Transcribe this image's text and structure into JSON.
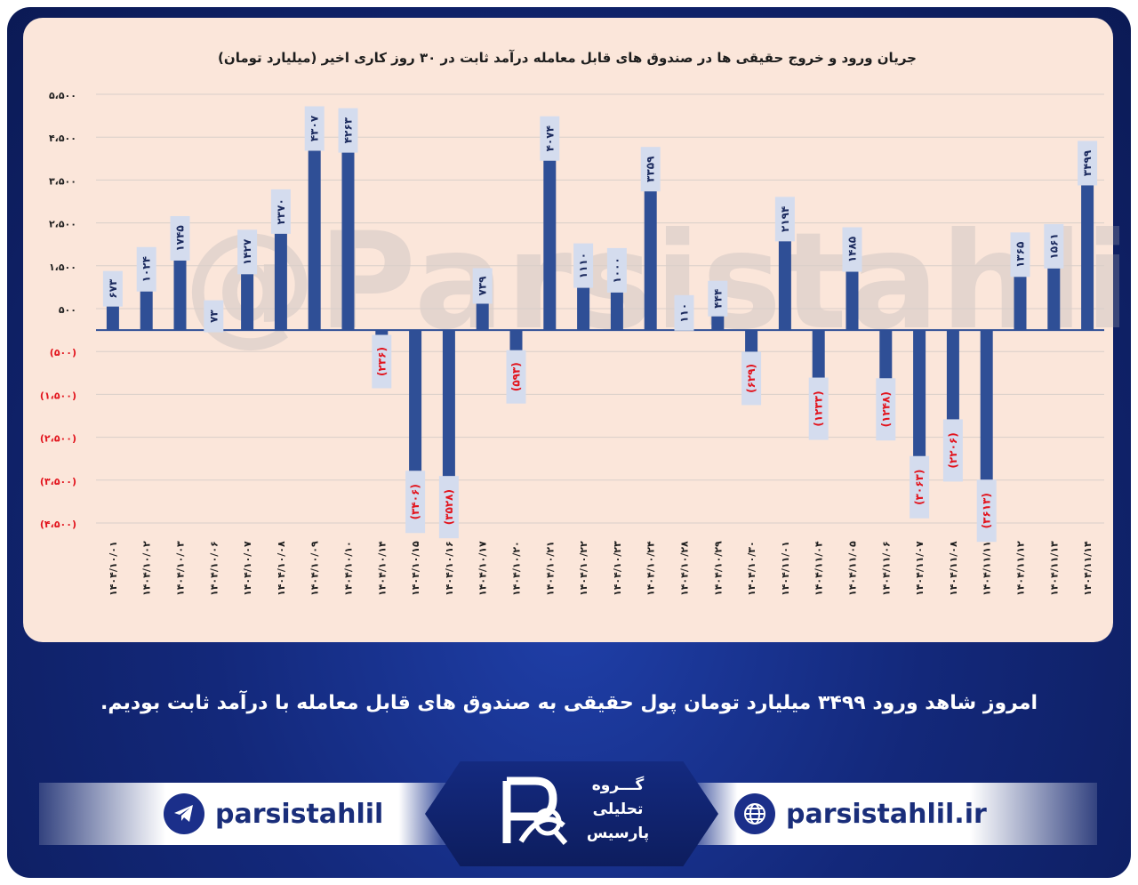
{
  "chart_data": {
    "type": "bar",
    "title": "جریان ورود و خروج حقیقی ها در صندوق های قابل معامله درآمد ثابت در ۳۰ روز کاری اخیر (میلیارد تومان)",
    "y_ticks": [
      "۵،۵۰۰",
      "۴،۵۰۰",
      "۳،۵۰۰",
      "۲،۵۰۰",
      "۱،۵۰۰",
      "۵۰۰",
      "(۵۰۰)",
      "(۱،۵۰۰)",
      "(۲،۵۰۰)",
      "(۳،۵۰۰)",
      "(۴،۵۰۰)"
    ],
    "y_tick_values": [
      5500,
      4500,
      3500,
      2500,
      1500,
      500,
      -500,
      -1500,
      -2500,
      -3500,
      -4500
    ],
    "ylim": [
      -4500,
      5500
    ],
    "grid": true,
    "categories": [
      "۱۴۰۴/۱۰/۰۱",
      "۱۴۰۴/۱۰/۰۲",
      "۱۴۰۴/۱۰/۰۳",
      "۱۴۰۴/۱۰/۰۶",
      "۱۴۰۴/۱۰/۰۷",
      "۱۴۰۴/۱۰/۰۸",
      "۱۴۰۴/۱۰/۰۹",
      "۱۴۰۴/۱۰/۱۰",
      "۱۴۰۴/۱۰/۱۴",
      "۱۴۰۴/۱۰/۱۵",
      "۱۴۰۴/۱۰/۱۶",
      "۱۴۰۴/۱۰/۱۷",
      "۱۴۰۴/۱۰/۲۰",
      "۱۴۰۴/۱۰/۲۱",
      "۱۴۰۴/۱۰/۲۲",
      "۱۴۰۴/۱۰/۲۳",
      "۱۴۰۴/۱۰/۲۴",
      "۱۴۰۴/۱۰/۲۸",
      "۱۴۰۴/۱۰/۲۹",
      "۱۴۰۴/۱۰/۳۰",
      "۱۴۰۴/۱۱/۰۱",
      "۱۴۰۴/۱۱/۰۴",
      "۱۴۰۴/۱۱/۰۵",
      "۱۴۰۴/۱۱/۰۶",
      "۱۴۰۴/۱۱/۰۷",
      "۱۴۰۴/۱۱/۰۸",
      "۱۴۰۴/۱۱/۱۱",
      "۱۴۰۴/۱۱/۱۲",
      "۱۴۰۴/۱۱/۱۳",
      "۱۴۰۴/۱۱/۱۴"
    ],
    "values": [
      673,
      1024,
      1745,
      73,
      1427,
      2370,
      4307,
      4263,
      -236,
      -3406,
      -3528,
      739,
      -593,
      4074,
      1110,
      1000,
      3359,
      110,
      444,
      -629,
      2194,
      -1233,
      1485,
      -1248,
      -3063,
      -2206,
      -3613,
      1365,
      1561,
      3499
    ],
    "data_labels": [
      "۶۷۳",
      "۱۰۲۴",
      "۱۷۴۵",
      "۷۳",
      "۱۴۲۷",
      "۲۳۷۰",
      "۴۳۰۷",
      "۴۲۶۳",
      "(۲۳۶)",
      "(۳۴۰۶)",
      "(۳۵۲۸)",
      "۷۳۹",
      "(۵۹۳)",
      "۴۰۷۴",
      "۱۱۱۰",
      "۱۰۰۰",
      "۳۳۵۹",
      "۱۱۰",
      "۴۴۴",
      "(۶۲۹)",
      "۲۱۹۴",
      "(۱۲۳۳)",
      "۱۴۸۵",
      "(۱۲۴۸)",
      "(۳۰۶۳)",
      "(۲۲۰۶)",
      "(۳۶۱۳)",
      "۱۳۶۵",
      "۱۵۶۱",
      "۳۴۹۹"
    ],
    "bar_color": "#2f4f96",
    "positive_label_color": "#1b2a5e",
    "negative_label_color": "#e2141d",
    "label_box_color": "#d4dcee"
  },
  "watermark": "@Parsistahlil",
  "summary": "امروز شاهد ورود ۳۴۹۹ میلیارد تومان پول حقیقی به صندوق های قابل معامله با درآمد ثابت بودیم.",
  "footer": {
    "telegram_handle": "parsistahlil",
    "website": "parsistahlil.ir",
    "logo_lines": [
      "گـــروه",
      "تحلیلی",
      "پارسیس"
    ]
  },
  "colors": {
    "background": "#13287a",
    "panel": "#fbe6da",
    "footer_text": "#1a2e7a"
  }
}
